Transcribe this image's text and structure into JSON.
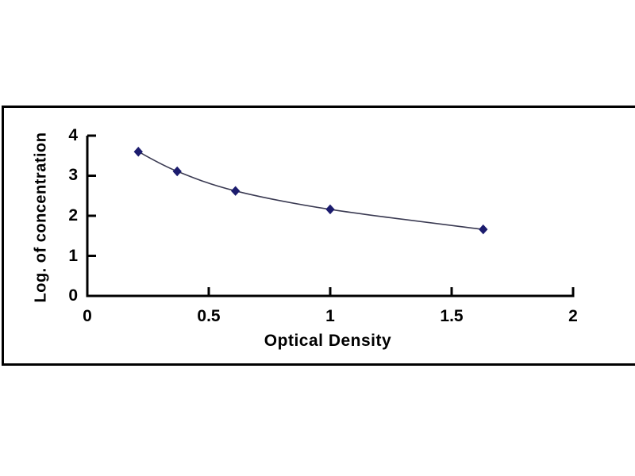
{
  "page": {
    "background": "#ffffff"
  },
  "chart_data": {
    "type": "line",
    "title": "",
    "xlabel": "Optical Density",
    "ylabel": "Log. of concentration",
    "points": [
      {
        "x": 0.21,
        "y": 3.6
      },
      {
        "x": 0.37,
        "y": 3.11
      },
      {
        "x": 0.61,
        "y": 2.62
      },
      {
        "x": 1.0,
        "y": 2.16
      },
      {
        "x": 1.63,
        "y": 1.66
      }
    ],
    "xlim": [
      0,
      2
    ],
    "ylim": [
      0,
      4
    ],
    "xticks": {
      "values": [
        0,
        0.5,
        1,
        1.5,
        2
      ],
      "labels": [
        "0",
        "0.5",
        "1",
        "1.5",
        "2"
      ]
    },
    "yticks": {
      "values": [
        0,
        1,
        2,
        3,
        4
      ],
      "labels": [
        "0",
        "1",
        "2",
        "3",
        "4"
      ]
    },
    "curve_style": "smooth",
    "marker": "diamond",
    "marker_color": "#1c1c6e",
    "line_color": "#3a3a52",
    "axis_color": "#000000",
    "grid": false,
    "legend_position": "none"
  }
}
